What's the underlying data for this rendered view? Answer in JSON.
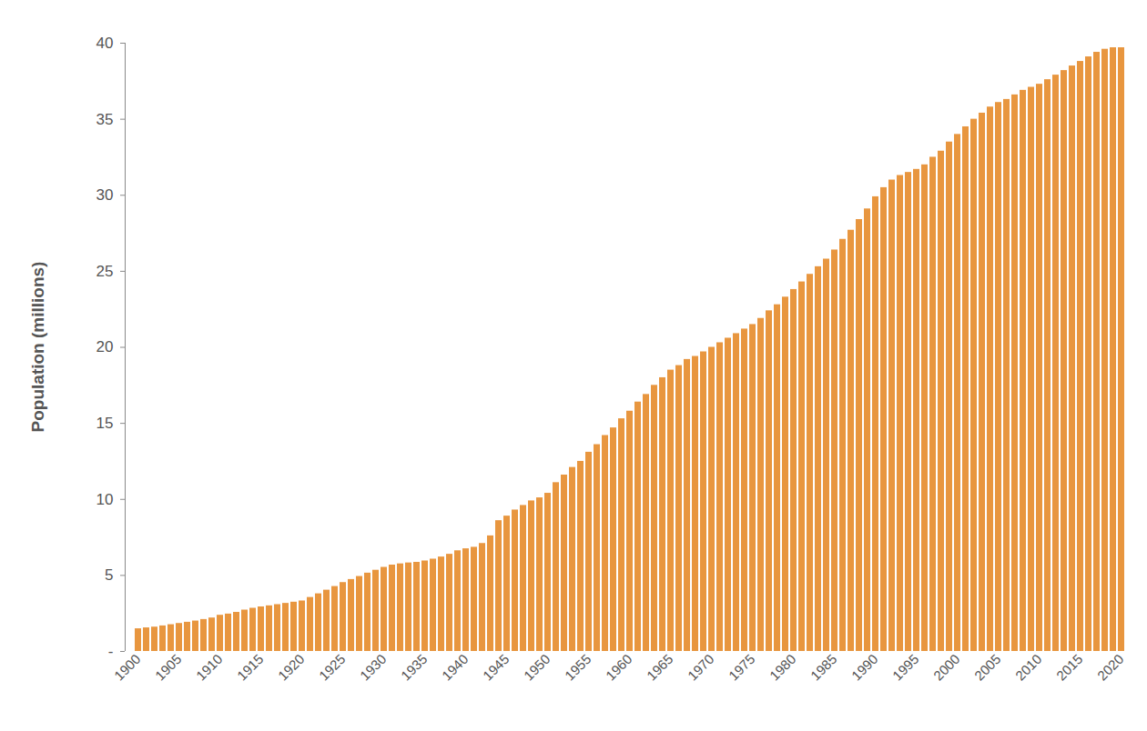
{
  "chart_data": {
    "type": "bar",
    "ylabel": "Population (millions)",
    "color": "#e8963f",
    "ylim": [
      0,
      40
    ],
    "yticks": [
      {
        "value": 0,
        "label": "-"
      },
      5,
      10,
      15,
      20,
      25,
      30,
      35,
      40
    ],
    "categories": [
      "1900",
      null,
      null,
      null,
      null,
      "1905",
      null,
      null,
      null,
      null,
      "1910",
      null,
      null,
      null,
      null,
      "1915",
      null,
      null,
      null,
      null,
      "1920",
      null,
      null,
      null,
      null,
      "1925",
      null,
      null,
      null,
      null,
      "1930",
      null,
      null,
      null,
      null,
      "1935",
      null,
      null,
      null,
      null,
      "1940",
      null,
      null,
      null,
      null,
      "1945",
      null,
      null,
      null,
      null,
      "1950",
      null,
      null,
      null,
      null,
      "1955",
      null,
      null,
      null,
      null,
      "1960",
      null,
      null,
      null,
      null,
      "1965",
      null,
      null,
      null,
      null,
      "1970",
      null,
      null,
      null,
      null,
      "1975",
      null,
      null,
      null,
      null,
      "1980",
      null,
      null,
      null,
      null,
      "1985",
      null,
      null,
      null,
      null,
      "1990",
      null,
      null,
      null,
      null,
      "1995",
      null,
      null,
      null,
      null,
      "2000",
      null,
      null,
      null,
      null,
      "2005",
      null,
      null,
      null,
      null,
      "2010",
      null,
      null,
      null,
      null,
      "2015",
      null,
      null,
      null,
      null,
      "2020"
    ],
    "values": [
      1.49,
      1.55,
      1.6,
      1.68,
      1.76,
      1.84,
      1.92,
      2.0,
      2.1,
      2.2,
      2.38,
      2.46,
      2.57,
      2.72,
      2.84,
      2.93,
      3.0,
      3.08,
      3.16,
      3.24,
      3.32,
      3.55,
      3.79,
      4.03,
      4.27,
      4.53,
      4.73,
      4.93,
      5.15,
      5.34,
      5.53,
      5.68,
      5.76,
      5.82,
      5.86,
      5.95,
      6.07,
      6.21,
      6.39,
      6.62,
      6.75,
      6.85,
      7.1,
      7.6,
      8.6,
      8.9,
      9.3,
      9.6,
      9.9,
      10.1,
      10.4,
      11.1,
      11.6,
      12.1,
      12.5,
      13.1,
      13.6,
      14.2,
      14.7,
      15.3,
      15.8,
      16.4,
      16.9,
      17.5,
      18.0,
      18.5,
      18.8,
      19.2,
      19.4,
      19.7,
      20.0,
      20.3,
      20.6,
      20.9,
      21.2,
      21.5,
      21.9,
      22.4,
      22.8,
      23.3,
      23.8,
      24.3,
      24.8,
      25.3,
      25.8,
      26.4,
      27.1,
      27.7,
      28.4,
      29.1,
      29.9,
      30.5,
      31.0,
      31.3,
      31.5,
      31.7,
      32.0,
      32.5,
      32.9,
      33.5,
      34.0,
      34.5,
      35.0,
      35.4,
      35.8,
      36.1,
      36.3,
      36.6,
      36.9,
      37.1,
      37.3,
      37.6,
      37.9,
      38.2,
      38.5,
      38.8,
      39.1,
      39.4,
      39.6,
      39.7,
      39.7
    ]
  }
}
